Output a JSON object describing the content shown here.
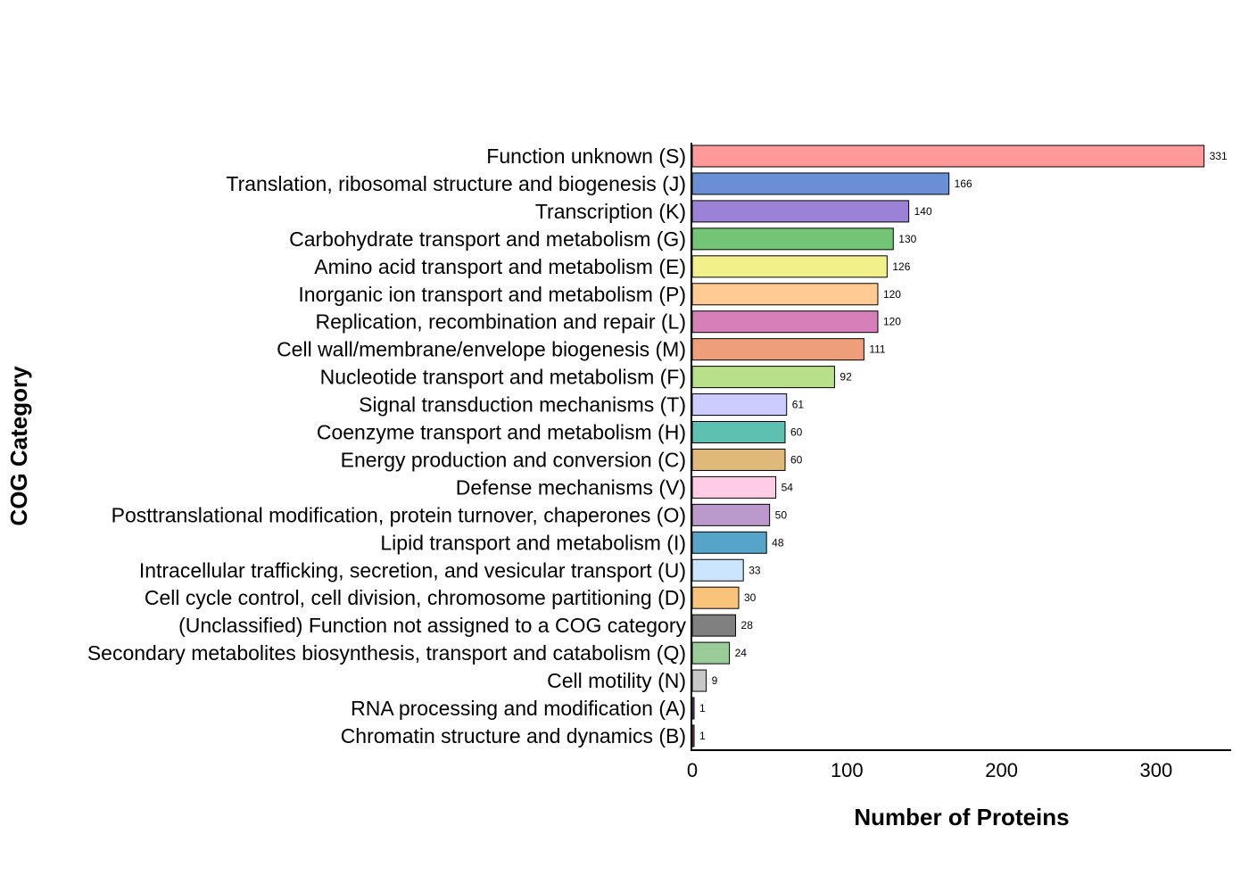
{
  "chart_data": {
    "type": "bar",
    "orientation": "horizontal",
    "xlabel": "Number of Proteins",
    "ylabel": "COG Category",
    "xlim": [
      0,
      348
    ],
    "xticks": [
      0,
      100,
      200,
      300
    ],
    "grid": false,
    "categories": [
      "Function unknown (S)",
      "Translation, ribosomal structure and biogenesis (J)",
      "Transcription (K)",
      "Carbohydrate transport and metabolism (G)",
      "Amino acid transport and metabolism (E)",
      "Inorganic ion transport and metabolism (P)",
      "Replication, recombination and repair (L)",
      "Cell wall/membrane/envelope biogenesis (M)",
      "Nucleotide transport and metabolism (F)",
      "Signal transduction mechanisms (T)",
      "Coenzyme transport and metabolism (H)",
      "Energy production and conversion (C)",
      "Defense mechanisms (V)",
      "Posttranslational modification, protein turnover, chaperones (O)",
      "Lipid transport and metabolism (I)",
      "Intracellular trafficking, secretion, and vesicular transport (U)",
      "Cell cycle control, cell division, chromosome partitioning (D)",
      "(Unclassified) Function not assigned to a COG category",
      "Secondary metabolites biosynthesis, transport and catabolism (Q)",
      "Cell motility (N)",
      "RNA processing and modification (A)",
      "Chromatin structure and dynamics (B)"
    ],
    "values": [
      331,
      166,
      140,
      130,
      126,
      120,
      120,
      111,
      92,
      61,
      60,
      60,
      54,
      50,
      48,
      33,
      30,
      28,
      24,
      9,
      1,
      1
    ],
    "colors": [
      "#ff9999",
      "#6b8fd4",
      "#9b82d6",
      "#74c476",
      "#f2f08a",
      "#ffca94",
      "#d77fb9",
      "#ef9e7a",
      "#b8e08a",
      "#ccccff",
      "#5dc0b0",
      "#e0b87a",
      "#ffcce6",
      "#bb99cc",
      "#56a5c8",
      "#cce5ff",
      "#f9c47a",
      "#808080",
      "#99cc99",
      "#c8c8c8",
      "#7b4f8a",
      "#a0525a"
    ]
  }
}
